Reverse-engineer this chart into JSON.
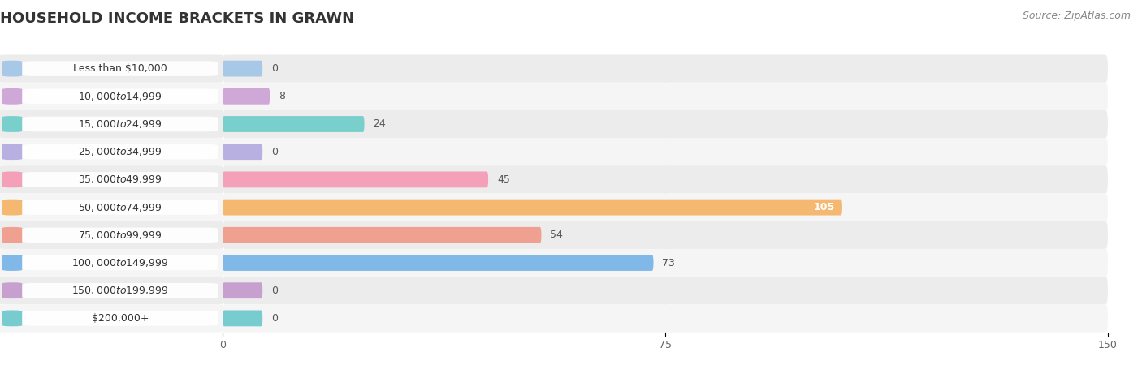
{
  "title": "HOUSEHOLD INCOME BRACKETS IN GRAWN",
  "source": "Source: ZipAtlas.com",
  "categories": [
    "Less than $10,000",
    "$10,000 to $14,999",
    "$15,000 to $24,999",
    "$25,000 to $34,999",
    "$35,000 to $49,999",
    "$50,000 to $74,999",
    "$75,000 to $99,999",
    "$100,000 to $149,999",
    "$150,000 to $199,999",
    "$200,000+"
  ],
  "values": [
    0,
    8,
    24,
    0,
    45,
    105,
    54,
    73,
    0,
    0
  ],
  "bar_colors": [
    "#a8c8e8",
    "#d0a8d8",
    "#78cfcc",
    "#b8b0e0",
    "#f4a0b8",
    "#f4b870",
    "#f0a090",
    "#80b8e8",
    "#c8a0d0",
    "#78ccd0"
  ],
  "xlim_max": 150,
  "xticks": [
    0,
    75,
    150
  ],
  "title_fontsize": 13,
  "label_fontsize": 9,
  "value_fontsize": 9,
  "source_fontsize": 9,
  "bar_height": 0.58,
  "row_colors": [
    "#ececec",
    "#f5f5f5"
  ],
  "label_box_color": "#ffffff",
  "gridline_color": "#cccccc",
  "value_color_dark": "#555555",
  "value_color_light": "#ffffff"
}
